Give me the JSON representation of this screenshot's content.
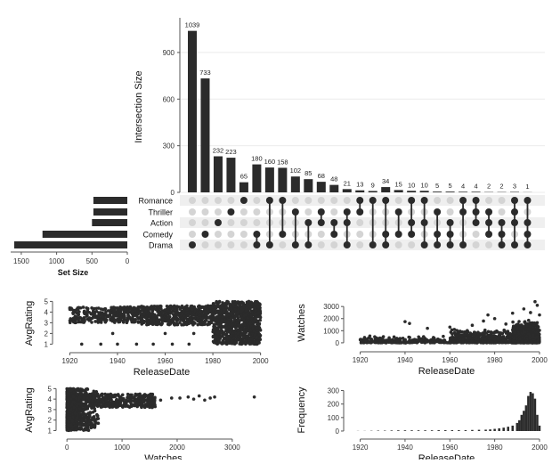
{
  "colors": {
    "bar": "#2b2b2b",
    "dot_active": "#2b2b2b",
    "dot_inactive": "#d4d4d4",
    "stripe": "#efefef",
    "grid": "#ebebeb"
  },
  "chart_data": [
    {
      "type": "bar",
      "panel": "upset-intersections",
      "ylabel": "Intersection Size",
      "ylim": [
        0,
        1100
      ],
      "yticks": [
        0,
        300,
        600,
        900
      ],
      "sets": [
        "Romance",
        "Thriller",
        "Action",
        "Comedy",
        "Drama"
      ],
      "values": [
        1039,
        733,
        232,
        223,
        65,
        180,
        160,
        158,
        102,
        85,
        68,
        48,
        21,
        13,
        9,
        34,
        15,
        10,
        10,
        5,
        5,
        4,
        4,
        2,
        2,
        3,
        1
      ],
      "value_labels": [
        "1039",
        "733",
        "232",
        "223",
        "65",
        "180",
        "160",
        "158",
        "102",
        "85",
        "68",
        "48",
        "21",
        "13",
        "9",
        "34",
        "15",
        "10",
        "10",
        "5",
        "5",
        "4",
        "4",
        "2",
        "2",
        "3",
        "1"
      ],
      "memberships": [
        [
          "Drama"
        ],
        [
          "Comedy"
        ],
        [
          "Action"
        ],
        [
          "Thriller"
        ],
        [
          "Romance"
        ],
        [
          "Comedy",
          "Drama"
        ],
        [
          "Romance",
          "Drama"
        ],
        [
          "Romance",
          "Comedy"
        ],
        [
          "Thriller",
          "Drama"
        ],
        [
          "Action",
          "Drama"
        ],
        [
          "Action",
          "Thriller"
        ],
        [
          "Action",
          "Comedy"
        ],
        [
          "Thriller",
          "Action",
          "Drama"
        ],
        [
          "Romance",
          "Thriller"
        ],
        [
          "Romance",
          "Drama"
        ],
        [
          "Romance",
          "Comedy",
          "Drama"
        ],
        [
          "Thriller",
          "Comedy"
        ],
        [
          "Romance",
          "Action",
          "Comedy"
        ],
        [
          "Romance",
          "Action",
          "Drama"
        ],
        [
          "Thriller",
          "Comedy",
          "Drama"
        ],
        [
          "Action",
          "Comedy",
          "Drama"
        ],
        [
          "Romance",
          "Thriller",
          "Drama"
        ],
        [
          "Romance",
          "Thriller",
          "Action"
        ],
        [
          "Thriller",
          "Action",
          "Comedy"
        ],
        [
          "Action",
          "Comedy",
          "Drama"
        ],
        [
          "Romance",
          "Thriller",
          "Action",
          "Drama"
        ],
        [
          "Romance",
          "Action",
          "Comedy",
          "Drama"
        ]
      ]
    },
    {
      "type": "bar",
      "panel": "upset-set-size",
      "xlabel": "Set Size",
      "categories": [
        "Romance",
        "Thriller",
        "Action",
        "Comedy",
        "Drama"
      ],
      "values": [
        480,
        480,
        500,
        1200,
        1600
      ],
      "xlim": [
        1650,
        0
      ],
      "xticks": [
        1500,
        1000,
        500,
        0
      ]
    },
    {
      "type": "scatter",
      "panel": "releasedate-avgrating",
      "xlabel": "ReleaseDate",
      "ylabel": "AvgRating",
      "xlim": [
        1915,
        2002
      ],
      "ylim": [
        0.7,
        5.2
      ],
      "xticks": [
        1920,
        1940,
        1960,
        1980,
        2000
      ],
      "yticks": [
        1,
        2,
        3,
        4,
        5
      ],
      "density": [
        [
          1920,
          1950,
          3,
          4.5
        ],
        [
          1950,
          1980,
          2.8,
          4.6
        ],
        [
          1980,
          2000,
          1,
          5
        ]
      ]
    },
    {
      "type": "scatter",
      "panel": "releasedate-watches",
      "xlabel": "ReleaseDate",
      "ylabel": "Watches",
      "xlim": [
        1915,
        2002
      ],
      "ylim": [
        -300,
        3600
      ],
      "xticks": [
        1920,
        1940,
        1960,
        1980,
        2000
      ],
      "yticks": [
        0,
        1000,
        2000,
        3000
      ],
      "outliers": [
        [
          1940,
          1750
        ],
        [
          1942,
          1600
        ],
        [
          1950,
          1200
        ],
        [
          1960,
          1300
        ],
        [
          1962,
          1100
        ],
        [
          1970,
          1450
        ],
        [
          1975,
          1800
        ],
        [
          1977,
          2300
        ],
        [
          1980,
          2000
        ],
        [
          1985,
          1550
        ],
        [
          1988,
          2450
        ],
        [
          1993,
          2800
        ],
        [
          1996,
          2500
        ],
        [
          1998,
          3400
        ],
        [
          1999,
          3100
        ],
        [
          2000,
          2300
        ]
      ]
    },
    {
      "type": "scatter",
      "panel": "watches-avgrating",
      "xlabel": "Watches",
      "ylabel": "AvgRating",
      "xlim": [
        -100,
        3600
      ],
      "ylim": [
        0.7,
        5.2
      ],
      "xticks": [
        0,
        1000,
        2000,
        3000
      ],
      "yticks": [
        1,
        2,
        3,
        4,
        5
      ],
      "outliers": [
        [
          1700,
          3.9
        ],
        [
          1900,
          4.1
        ],
        [
          2050,
          4.1
        ],
        [
          2200,
          4.2
        ],
        [
          2300,
          4.0
        ],
        [
          2400,
          4.3
        ],
        [
          2500,
          3.9
        ],
        [
          2600,
          4.1
        ],
        [
          2680,
          4.2
        ],
        [
          3400,
          4.2
        ]
      ]
    },
    {
      "type": "bar",
      "panel": "releasedate-frequency",
      "xlabel": "ReleaseDate",
      "ylabel": "Frequency",
      "xlim": [
        1915,
        2002
      ],
      "ylim": [
        -20,
        330
      ],
      "xticks": [
        1920,
        1940,
        1960,
        1980,
        2000
      ],
      "yticks": [
        0,
        100,
        200,
        300
      ],
      "x": [
        1919,
        1922,
        1925,
        1928,
        1931,
        1934,
        1937,
        1940,
        1943,
        1946,
        1949,
        1952,
        1955,
        1958,
        1961,
        1964,
        1967,
        1970,
        1973,
        1976,
        1978,
        1980,
        1982,
        1984,
        1986,
        1988,
        1990,
        1991,
        1992,
        1993,
        1994,
        1995,
        1996,
        1997,
        1998,
        1999,
        2000
      ],
      "values": [
        1,
        1,
        2,
        3,
        3,
        4,
        5,
        5,
        5,
        5,
        5,
        5,
        6,
        6,
        6,
        6,
        6,
        8,
        9,
        10,
        12,
        16,
        20,
        25,
        32,
        40,
        60,
        80,
        120,
        150,
        190,
        260,
        290,
        280,
        240,
        120,
        40
      ]
    }
  ]
}
